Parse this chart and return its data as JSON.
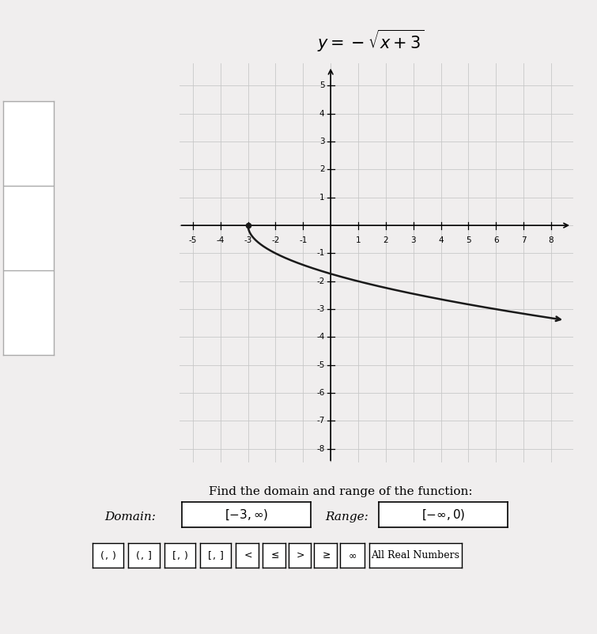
{
  "title": "y = -\\sqrt{x+3}",
  "xlim": [
    -5.5,
    8.8
  ],
  "ylim": [
    -8.5,
    5.8
  ],
  "xtick_vals": [
    -5,
    -4,
    -3,
    -2,
    -1,
    1,
    2,
    3,
    4,
    5,
    6,
    7,
    8
  ],
  "ytick_vals": [
    -8,
    -7,
    -6,
    -5,
    -4,
    -3,
    -2,
    -1,
    1,
    2,
    3,
    4,
    5
  ],
  "curve_color": "#1a1a1a",
  "curve_linewidth": 1.8,
  "grid_color": "#c8c8c8",
  "bg_color": "#ffffff",
  "fig_bg": "#f0eeee",
  "domain_text": "[-3,∞)",
  "range_text": "[-∞,0)",
  "find_text": "Find the domain and range of the function:",
  "domain_label": "Domain:",
  "range_label": "Range:",
  "buttons": [
    "(,)",
    "(,]",
    "[,)",
    "[,]",
    "<",
    "≤",
    ">",
    "≥",
    "∞",
    "All Real Numbers"
  ]
}
